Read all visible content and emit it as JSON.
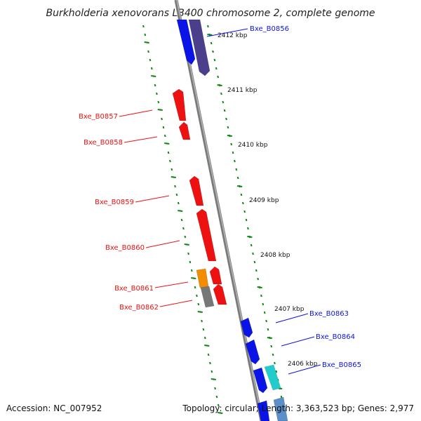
{
  "title": "Burkholderia xenovorans LB400 chromosome 2, complete genome",
  "footer": {
    "accession": "Accession: NC_007952",
    "stats": "Topology: circular; Length: 3,363,523 bp; Genes: 2,977"
  },
  "colors": {
    "forward_gene": "#0a14e6",
    "reverse_gene": "#ee1111",
    "pseudo_gene": "#f28c00",
    "other_gene": "#777777",
    "rna_gene": "#22cccc",
    "cog_gene": "#4b3f8c",
    "tick": "#118811",
    "backbone": "#8c8c8c"
  },
  "kbp_labels": [
    "2412 kbp",
    "2411 kbp",
    "2410 kbp",
    "2409 kbp",
    "2408 kbp",
    "2407 kbp",
    "2406 kbp"
  ],
  "genes": [
    {
      "name": "Bxe_B0856",
      "strand": "forward",
      "color": "#0a14e6"
    },
    {
      "name": "Bxe_B0857",
      "strand": "reverse",
      "color": "#ee1111"
    },
    {
      "name": "Bxe_B0858",
      "strand": "reverse",
      "color": "#ee1111"
    },
    {
      "name": "Bxe_B0859",
      "strand": "reverse",
      "color": "#ee1111"
    },
    {
      "name": "Bxe_B0860",
      "strand": "reverse",
      "color": "#ee1111"
    },
    {
      "name": "Bxe_B0861",
      "strand": "reverse",
      "color": "#ee1111"
    },
    {
      "name": "Bxe_B0862",
      "strand": "reverse",
      "color": "#ee1111"
    },
    {
      "name": "Bxe_B0863",
      "strand": "forward",
      "color": "#0a14e6"
    },
    {
      "name": "Bxe_B0864",
      "strand": "forward",
      "color": "#0a14e6"
    },
    {
      "name": "Bxe_B0865",
      "strand": "forward",
      "color": "#0a14e6"
    }
  ]
}
